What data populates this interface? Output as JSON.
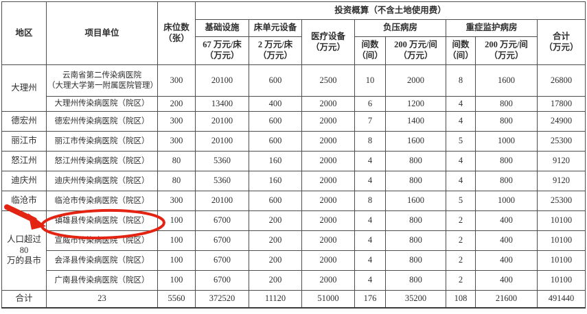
{
  "table": {
    "header": {
      "region": "地区",
      "unit": "项目单位",
      "beds": "床位数\n（张）",
      "investment_group": "投资概算（不含土地使用费）",
      "infrastructure": "基础设施",
      "infrastructure_rate": "67 万元/床\n（万元）",
      "bed_unit_equipment": "床单元设备",
      "bed_unit_rate": "2 万元/床\n（万元）",
      "medical_equipment": "医疗设备\n（万元）",
      "negative_pressure_ward": "负压病房",
      "np_rooms": "间数\n（间）",
      "np_rate": "200 万元/间\n（万元）",
      "icu_ward": "重症监护病房",
      "icu_rooms": "间数\n（间）",
      "icu_rate": "200 万元/间\n（万元）",
      "total": "合计\n（万元）"
    },
    "rows": [
      {
        "region": "大理州",
        "region_rowspan": 2,
        "unit": "云南省第二传染病医院\n（大理大学第一附属医院管理）",
        "highlighted": false,
        "values": [
          "300",
          "20100",
          "600",
          "2500",
          "10",
          "2000",
          "8",
          "1600",
          "26800"
        ]
      },
      {
        "region": null,
        "unit": "大理州传染病医院（院区）",
        "highlighted": false,
        "values": [
          "200",
          "13400",
          "400",
          "2000",
          "6",
          "1200",
          "4",
          "800",
          "17800"
        ]
      },
      {
        "region": "德宏州",
        "region_rowspan": 1,
        "unit": "德宏州传染病医院（院区）",
        "highlighted": false,
        "values": [
          "300",
          "20100",
          "600",
          "2000",
          "7",
          "1400",
          "4",
          "800",
          "24900"
        ]
      },
      {
        "region": "丽江市",
        "region_rowspan": 1,
        "unit": "丽江市传染病医院（院区）",
        "highlighted": false,
        "values": [
          "300",
          "20100",
          "600",
          "2000",
          "8",
          "1600",
          "5",
          "1000",
          "25300"
        ]
      },
      {
        "region": "怒江州",
        "region_rowspan": 1,
        "unit": "怒江州传染病医院（院区）",
        "highlighted": false,
        "values": [
          "80",
          "5360",
          "160",
          "2000",
          "4",
          "800",
          "4",
          "800",
          "9120"
        ]
      },
      {
        "region": "迪庆州",
        "region_rowspan": 1,
        "unit": "迪庆州传染病医院（院区）",
        "highlighted": false,
        "values": [
          "80",
          "5360",
          "160",
          "2000",
          "4",
          "800",
          "4",
          "800",
          "9120"
        ]
      },
      {
        "region": "临沧市",
        "region_rowspan": 1,
        "unit": "临沧市传染病医院（院区）",
        "highlighted": false,
        "values": [
          "300",
          "20100",
          "600",
          "2000",
          "8",
          "1600",
          "5",
          "1000",
          "25300"
        ]
      },
      {
        "region": "人口超过 80\n万的县市",
        "region_rowspan": 4,
        "unit": "镇雄县传染病医院（院区）",
        "highlighted": true,
        "values": [
          "100",
          "6700",
          "200",
          "2000",
          "4",
          "800",
          "2",
          "400",
          "10100"
        ]
      },
      {
        "region": null,
        "unit": "宣威市传染病医院（院区）",
        "highlighted": false,
        "values": [
          "100",
          "6700",
          "200",
          "2000",
          "4",
          "800",
          "2",
          "400",
          "10100"
        ]
      },
      {
        "region": null,
        "unit": "会泽县传染病医院（院区）",
        "highlighted": false,
        "values": [
          "100",
          "6700",
          "200",
          "2000",
          "4",
          "800",
          "2",
          "400",
          "10100"
        ]
      },
      {
        "region": null,
        "unit": "广南县传染病医院（院区）",
        "highlighted": false,
        "values": [
          "100",
          "6700",
          "200",
          "2000",
          "4",
          "800",
          "2",
          "400",
          "10100"
        ]
      }
    ],
    "total_row": {
      "label": "合计",
      "count": "23",
      "values": [
        "5560",
        "372520",
        "11120",
        "51000",
        "176",
        "35200",
        "108",
        "21600",
        "491440"
      ]
    }
  },
  "annotation": {
    "type": "ellipse-and-arrow",
    "target": "镇雄县传染病医院（院区）",
    "color": "#e32413"
  }
}
